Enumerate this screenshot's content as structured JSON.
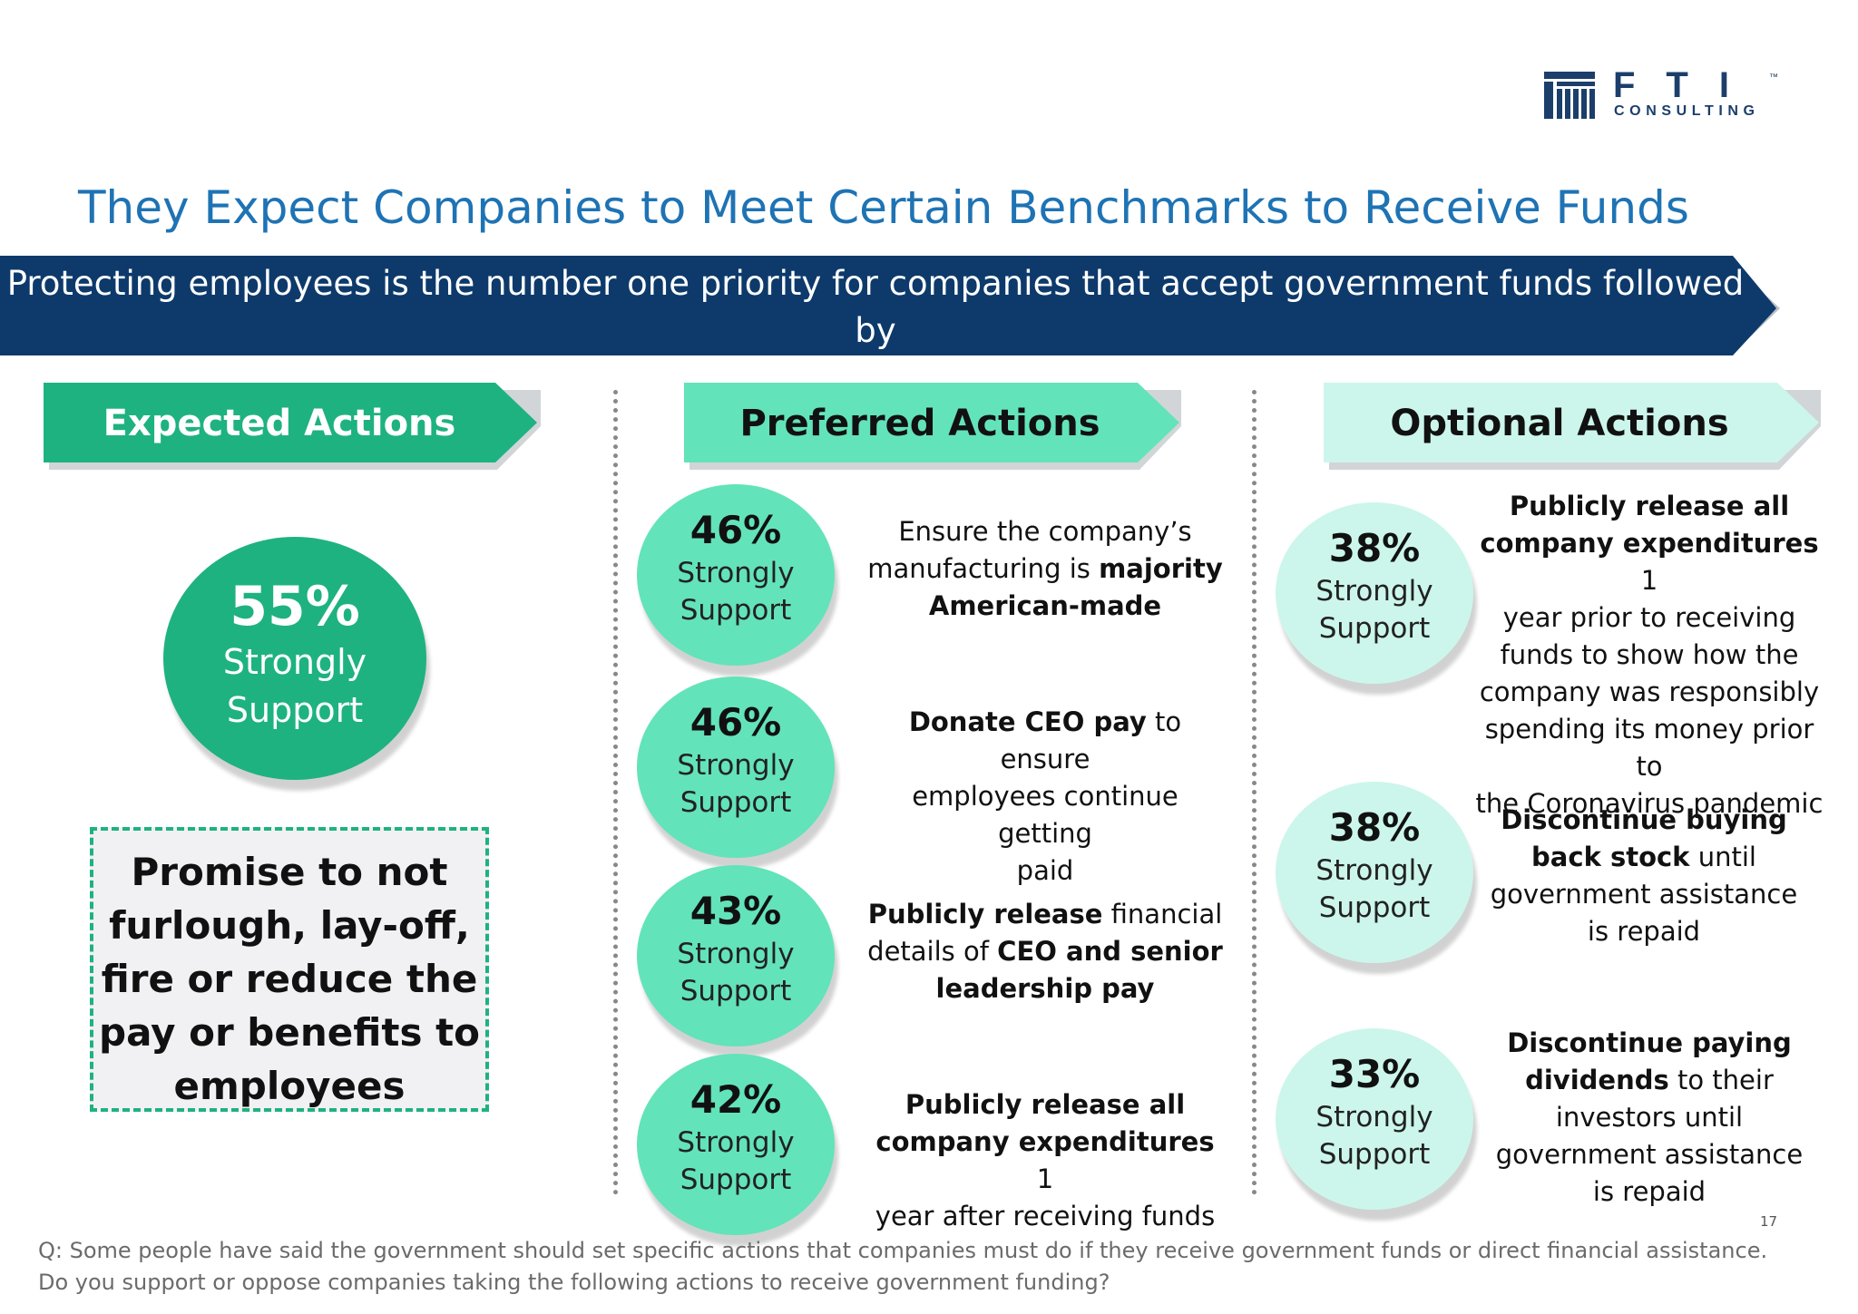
{
  "logo": {
    "letters": "FTI",
    "tm": "™",
    "sub": "CONSULTING"
  },
  "title": "They Expect Companies to Meet Certain Benchmarks to Receive Funds",
  "banner": {
    "text": "Protecting employees is the number one priority for companies that accept government funds followed by\nmanufacturing American-made products and donating CEO pay to employees"
  },
  "colors": {
    "title_blue": "#1e73b4",
    "banner_navy": "#0d3a6b",
    "expected_green": "#1eb281",
    "preferred_green": "#63e3b9",
    "optional_mint": "#ccf6eb"
  },
  "columns": {
    "expected": {
      "header": "Expected Actions",
      "circle": {
        "pct": "55%",
        "line1": "Strongly",
        "line2": "Support"
      },
      "promise": "Promise to not\nfurlough, lay-off,\nfire or reduce the\npay or benefits to\nemployees"
    },
    "preferred": {
      "header": "Preferred Actions",
      "items": [
        {
          "pct": "46%",
          "line1": "Strongly",
          "line2": "Support",
          "desc": [
            {
              "t": "Ensure the company’s",
              "b": false
            },
            {
              "t": "\nmanufacturing is ",
              "b": false
            },
            {
              "t": "majority\nAmerican-made",
              "b": true
            }
          ]
        },
        {
          "pct": "46%",
          "line1": "Strongly",
          "line2": "Support",
          "desc": [
            {
              "t": "Donate CEO pay",
              "b": true
            },
            {
              "t": " to ensure\nemployees continue getting\npaid",
              "b": false
            }
          ]
        },
        {
          "pct": "43%",
          "line1": "Strongly",
          "line2": "Support",
          "desc": [
            {
              "t": "Publicly release",
              "b": true
            },
            {
              "t": " financial\ndetails of ",
              "b": false
            },
            {
              "t": "CEO and senior\nleadership pay",
              "b": true
            }
          ]
        },
        {
          "pct": "42%",
          "line1": "Strongly",
          "line2": "Support",
          "desc": [
            {
              "t": "Publicly release all\ncompany expenditures",
              "b": true
            },
            {
              "t": " 1\nyear after receiving funds",
              "b": false
            }
          ]
        }
      ]
    },
    "optional": {
      "header": "Optional Actions",
      "items": [
        {
          "pct": "38%",
          "line1": "Strongly",
          "line2": "Support",
          "desc": [
            {
              "t": "Publicly release all\ncompany expenditures",
              "b": true
            },
            {
              "t": " 1\nyear prior to receiving\nfunds to show how the\ncompany was responsibly\nspending its money prior to\nthe Coronavirus pandemic",
              "b": false
            }
          ]
        },
        {
          "pct": "38%",
          "line1": "Strongly",
          "line2": "Support",
          "desc": [
            {
              "t": "Discontinue buying\nback stock",
              "b": true
            },
            {
              "t": " until\ngovernment assistance\nis repaid",
              "b": false
            }
          ]
        },
        {
          "pct": "33%",
          "line1": "Strongly",
          "line2": "Support",
          "desc": [
            {
              "t": "Discontinue paying\ndividends",
              "b": true
            },
            {
              "t": " to their\ninvestors until\ngovernment assistance\nis repaid",
              "b": false
            }
          ]
        }
      ]
    }
  },
  "page_number": "17",
  "footnote": "Q: Some people have said the government should set specific actions that companies must do if they receive government funds or direct financial assistance.\nDo you support or oppose companies taking the following actions to receive government funding?"
}
